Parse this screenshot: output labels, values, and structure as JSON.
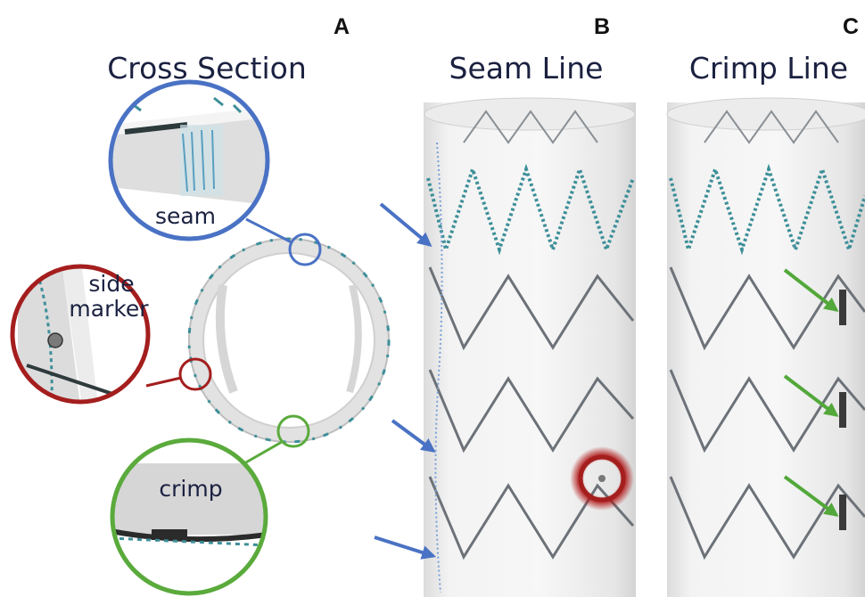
{
  "panels": {
    "A": {
      "letter": "A",
      "title": "Cross Section"
    },
    "B": {
      "letter": "B",
      "title": "Seam Line"
    },
    "C": {
      "letter": "C",
      "title": "Crimp Line"
    }
  },
  "lenses": {
    "seam": {
      "label": "seam",
      "color": "#4a72c4"
    },
    "side": {
      "label_line1": "side",
      "label_line2": "marker",
      "color": "#a41e1e"
    },
    "crimp": {
      "label": "crimp",
      "color": "#5aaa3c"
    }
  },
  "colors": {
    "seam_arrow": "#4a72c4",
    "crimp_arrow": "#52a83a",
    "suture": "#3d8f99",
    "wire": "#6c7278",
    "fabric": "#efefef",
    "title_text": "#1b2140"
  }
}
